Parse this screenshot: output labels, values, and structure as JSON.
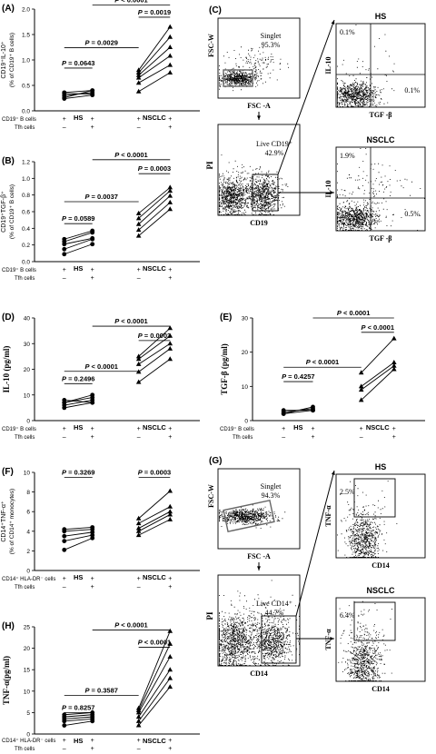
{
  "panels": {
    "A": {
      "letter": "(A)",
      "ylabel": "CD19⁺IL-10⁺",
      "ylabel2": "(% of CD19⁺ B cells)",
      "ticks": [
        "0.0",
        "0.5",
        "1.0",
        "1.5",
        "2.0"
      ],
      "row1_label": "CD19⁺ B cells",
      "row2_label": "Tfh cells",
      "row1_signs": [
        "+",
        "+",
        "+",
        "+"
      ],
      "row2_signs": [
        "–",
        "+",
        "–",
        "+"
      ],
      "group1": "HS",
      "group2": "NSCLC",
      "p_hs": "P = 0.0643",
      "p_cross": "P = 0.0029",
      "p_nsclc": "P = 0.0019",
      "p_top": "P < 0.0001"
    },
    "B": {
      "letter": "(B)",
      "ylabel": "CD19⁺TGF-β⁺",
      "ylabel2": "(% of CD19⁺ B cells)",
      "ticks": [
        "0.0",
        "0.2",
        "0.4",
        "0.6",
        "0.8",
        "1.0",
        "1.2"
      ],
      "row1_label": "CD19⁺ B cells",
      "row2_label": "Tfh cells",
      "row1_signs": [
        "+",
        "+",
        "+",
        "+"
      ],
      "row2_signs": [
        "–",
        "+",
        "–",
        "+"
      ],
      "group1": "HS",
      "group2": "NSCLC",
      "p_hs": "P = 0.0589",
      "p_cross": "P = 0.0037",
      "p_nsclc": "P = 0.0003",
      "p_top": "P < 0.0001"
    },
    "D": {
      "letter": "(D)",
      "ylabel": "IL-10 (pg/ml)",
      "ticks": [
        "0",
        "10",
        "20",
        "30",
        "40"
      ],
      "row1_label": "CD19⁺ B cells",
      "row2_label": "Tfh cells",
      "row1_signs": [
        "+",
        "+",
        "+",
        "+"
      ],
      "row2_signs": [
        "–",
        "+",
        "–",
        "+"
      ],
      "group1": "HS",
      "group2": "NSCLC",
      "p_hs": "P = 0.2496",
      "p_cross": "P < 0.0001",
      "p_nsclc": "P = 0.0003",
      "p_top": "P < 0.0001"
    },
    "E": {
      "letter": "(E)",
      "ylabel": "TGF-β (pg/ml)",
      "ticks": [
        "0",
        "10",
        "20",
        "30"
      ],
      "row1_label": "CD19⁺ B cells",
      "row2_label": "Tfh cells",
      "row1_signs": [
        "+",
        "+",
        "+",
        "+"
      ],
      "row2_signs": [
        "–",
        "+",
        "–",
        "+"
      ],
      "group1": "HS",
      "group2": "NSCLC",
      "p_hs": "P = 0.4257",
      "p_cross": "P < 0.0001",
      "p_nsclc": "P < 0.0001",
      "p_top": "P < 0.0001"
    },
    "F": {
      "letter": "(F)",
      "ylabel": "CD14⁺TNF-α⁺",
      "ylabel2": "(% of CD14⁺ monocytes)",
      "ticks": [
        "0",
        "2",
        "4",
        "6",
        "8",
        "10"
      ],
      "row1_label": "CD14⁺ HLA-DR⁻ cells",
      "row2_label": "Tfh cells",
      "row1_signs": [
        "+",
        "+",
        "+",
        "+"
      ],
      "row2_signs": [
        "–",
        "+",
        "–",
        "+"
      ],
      "group1": "HS",
      "group2": "NSCLC",
      "p_hs": "P = 0.3269",
      "p_nsclc": "P = 0.0003"
    },
    "H": {
      "letter": "(H)",
      "ylabel": "TNF-α(pg/ml)",
      "ticks": [
        "0",
        "5",
        "10",
        "15",
        "20",
        "25"
      ],
      "row1_label": "CD14⁺ HLA-DR⁻ cells",
      "row2_label": "Tfh cells",
      "row1_signs": [
        "+",
        "+",
        "+",
        "+"
      ],
      "row2_signs": [
        "–",
        "+",
        "–",
        "+"
      ],
      "group1": "HS",
      "group2": "NSCLC",
      "p_hs": "P = 0.8257",
      "p_cross": "P = 0.3587",
      "p_nsclc": "P < 0.0001",
      "p_top": "P < 0.0001"
    },
    "C": {
      "letter": "(C)",
      "singlet_x": "FSC -A",
      "singlet_y": "FSC-W",
      "singlet_label": "Singlet",
      "singlet_pct": "95.3%",
      "gate_x": "CD19",
      "gate_y": "PI",
      "gate_label": "Live CD19⁺",
      "gate_pct": "42.9%",
      "hs_title": "HS",
      "hs_ul": "0.1%",
      "hs_lr": "0.1%",
      "nsclc_title": "NSCLC",
      "nsclc_ul": "1.9%",
      "nsclc_lr": "0.5%",
      "quad_x": "TGF -β",
      "quad_y": "IL-10"
    },
    "G": {
      "letter": "(G)",
      "singlet_x": "FSC -A",
      "singlet_y": "FSC-W",
      "singlet_label": "Singlet",
      "singlet_pct": "94.3%",
      "gate_x": "CD14",
      "gate_y": "PI",
      "gate_label": "Live CD14⁺",
      "gate_pct": "44.7%",
      "hs_title": "HS",
      "hs_pct": "2.5%",
      "nsclc_title": "NSCLC",
      "nsclc_pct": "6.4%",
      "quad_x": "CD14",
      "quad_y": "TNF-α"
    }
  },
  "chart_data": [
    {
      "panel": "A",
      "type": "scatter",
      "connected_pairs": true,
      "ylim": [
        0,
        2.0
      ],
      "x": [
        "HS Tfh-",
        "HS Tfh+",
        "NSCLC Tfh-",
        "NSCLC Tfh+"
      ],
      "HS": [
        [
          0.24,
          0.31
        ],
        [
          0.3,
          0.36
        ],
        [
          0.36,
          0.4
        ],
        [
          0.34,
          0.33
        ],
        [
          0.26,
          0.4
        ]
      ],
      "NSCLC": [
        [
          0.38,
          0.75
        ],
        [
          0.55,
          0.9
        ],
        [
          0.65,
          1.08
        ],
        [
          0.7,
          1.25
        ],
        [
          0.75,
          1.45
        ],
        [
          0.8,
          1.65
        ]
      ]
    },
    {
      "panel": "B",
      "type": "scatter",
      "connected_pairs": true,
      "ylim": [
        0,
        1.2
      ],
      "HS": [
        [
          0.09,
          0.21
        ],
        [
          0.15,
          0.27
        ],
        [
          0.21,
          0.28
        ],
        [
          0.24,
          0.35
        ],
        [
          0.27,
          0.37
        ]
      ],
      "NSCLC": [
        [
          0.31,
          0.63
        ],
        [
          0.38,
          0.71
        ],
        [
          0.45,
          0.79
        ],
        [
          0.52,
          0.85
        ],
        [
          0.58,
          0.89
        ]
      ]
    },
    {
      "panel": "D",
      "type": "scatter",
      "connected_pairs": true,
      "ylim": [
        0,
        40
      ],
      "HS": [
        [
          5,
          7
        ],
        [
          6,
          8
        ],
        [
          7,
          9
        ],
        [
          7,
          10
        ],
        [
          8,
          7
        ]
      ],
      "NSCLC": [
        [
          15,
          24
        ],
        [
          19,
          28
        ],
        [
          22,
          30
        ],
        [
          24,
          33
        ],
        [
          25,
          36
        ]
      ]
    },
    {
      "panel": "E",
      "type": "scatter",
      "connected_pairs": true,
      "ylim": [
        0,
        30
      ],
      "HS": [
        [
          2,
          3
        ],
        [
          2.5,
          3.5
        ],
        [
          3,
          3
        ],
        [
          2,
          4
        ]
      ],
      "NSCLC": [
        [
          6,
          15
        ],
        [
          9,
          16
        ],
        [
          10,
          17
        ],
        [
          14,
          24
        ]
      ]
    },
    {
      "panel": "F",
      "type": "scatter",
      "connected_pairs": true,
      "ylim": [
        0,
        10
      ],
      "HS": [
        [
          2.1,
          3.3
        ],
        [
          3.0,
          3.6
        ],
        [
          3.5,
          3.9
        ],
        [
          4.0,
          4.2
        ],
        [
          4.2,
          4.4
        ]
      ],
      "NSCLC": [
        [
          3.6,
          5.2
        ],
        [
          4.0,
          5.7
        ],
        [
          4.3,
          6.0
        ],
        [
          4.8,
          6.5
        ],
        [
          5.3,
          8.1
        ]
      ]
    },
    {
      "panel": "H",
      "type": "scatter",
      "connected_pairs": true,
      "ylim": [
        0,
        25
      ],
      "HS": [
        [
          2,
          3
        ],
        [
          3,
          3.5
        ],
        [
          3.5,
          4
        ],
        [
          4,
          4.5
        ],
        [
          4.5,
          5
        ]
      ],
      "NSCLC": [
        [
          2,
          11
        ],
        [
          3,
          13
        ],
        [
          4,
          15
        ],
        [
          5,
          18
        ],
        [
          5.5,
          21
        ],
        [
          6,
          24
        ]
      ]
    }
  ]
}
